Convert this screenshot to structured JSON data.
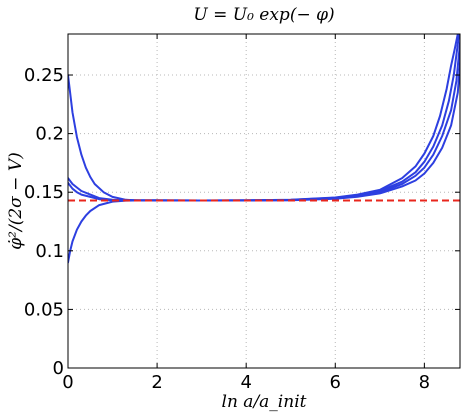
{
  "chart_data": {
    "type": "line",
    "title": "U = U₀ exp(− φ)",
    "xlabel": "ln a/a_init",
    "ylabel": "φ̇²/(2σ − V)",
    "xlim": [
      0,
      8.8
    ],
    "ylim": [
      0,
      0.285
    ],
    "xticks": [
      0,
      2,
      4,
      6,
      8
    ],
    "yticks": [
      0,
      0.05,
      0.1,
      0.15,
      0.2,
      0.25
    ],
    "xtick_labels": [
      "0",
      "2",
      "4",
      "6",
      "8"
    ],
    "ytick_labels": [
      "0",
      "0.05",
      "0.1",
      "0.15",
      "0.2",
      "0.25"
    ],
    "grid": true,
    "reference_line": {
      "y": 0.1429,
      "color": "#e8261d",
      "style": "dashed"
    },
    "series_color": "#2d3fe0",
    "series": [
      {
        "x": [
          0,
          0.1,
          0.2,
          0.3,
          0.4,
          0.5,
          0.6,
          0.8,
          1.0,
          1.3,
          1.6,
          2.0,
          3.0,
          4.0,
          5.0,
          6.0,
          6.5,
          7.0,
          7.5,
          7.8,
          8.0,
          8.2,
          8.35,
          8.5,
          8.6,
          8.68,
          8.75
        ],
        "y": [
          0.25,
          0.218,
          0.197,
          0.182,
          0.171,
          0.163,
          0.157,
          0.15,
          0.146,
          0.1435,
          0.143,
          0.143,
          0.1429,
          0.143,
          0.1435,
          0.1455,
          0.148,
          0.152,
          0.162,
          0.172,
          0.183,
          0.198,
          0.215,
          0.238,
          0.258,
          0.272,
          0.285
        ]
      },
      {
        "x": [
          0,
          0.1,
          0.2,
          0.3,
          0.5,
          0.7,
          1.0,
          1.3,
          1.6,
          2.0,
          3.0,
          4.0,
          5.0,
          6.0,
          6.5,
          7.0,
          7.5,
          7.8,
          8.0,
          8.2,
          8.4,
          8.55,
          8.66,
          8.78
        ],
        "y": [
          0.162,
          0.157,
          0.154,
          0.151,
          0.148,
          0.145,
          0.1435,
          0.143,
          0.143,
          0.143,
          0.1429,
          0.143,
          0.1434,
          0.1452,
          0.1475,
          0.151,
          0.159,
          0.167,
          0.176,
          0.189,
          0.207,
          0.228,
          0.25,
          0.285
        ]
      },
      {
        "x": [
          0,
          0.1,
          0.2,
          0.3,
          0.5,
          0.7,
          1.0,
          1.3,
          1.6,
          2.0,
          3.0,
          4.0,
          5.0,
          6.0,
          6.5,
          7.0,
          7.5,
          7.8,
          8.0,
          8.2,
          8.4,
          8.6,
          8.72,
          8.82
        ],
        "y": [
          0.158,
          0.153,
          0.15,
          0.148,
          0.146,
          0.144,
          0.1432,
          0.143,
          0.143,
          0.143,
          0.1429,
          0.143,
          0.1433,
          0.1448,
          0.147,
          0.15,
          0.157,
          0.164,
          0.171,
          0.182,
          0.198,
          0.22,
          0.245,
          0.285
        ]
      },
      {
        "x": [
          0,
          0.05,
          0.1,
          0.2,
          0.3,
          0.4,
          0.5,
          0.7,
          1.0,
          1.3,
          1.6,
          2.0,
          3.0,
          4.0,
          5.0,
          6.0,
          6.5,
          7.0,
          7.5,
          7.8,
          8.0,
          8.2,
          8.4,
          8.6,
          8.75,
          8.85
        ],
        "y": [
          0.09,
          0.1,
          0.108,
          0.118,
          0.125,
          0.13,
          0.134,
          0.139,
          0.142,
          0.1428,
          0.143,
          0.143,
          0.1429,
          0.143,
          0.1432,
          0.1444,
          0.1462,
          0.149,
          0.155,
          0.16,
          0.166,
          0.175,
          0.188,
          0.207,
          0.235,
          0.285
        ]
      }
    ]
  }
}
